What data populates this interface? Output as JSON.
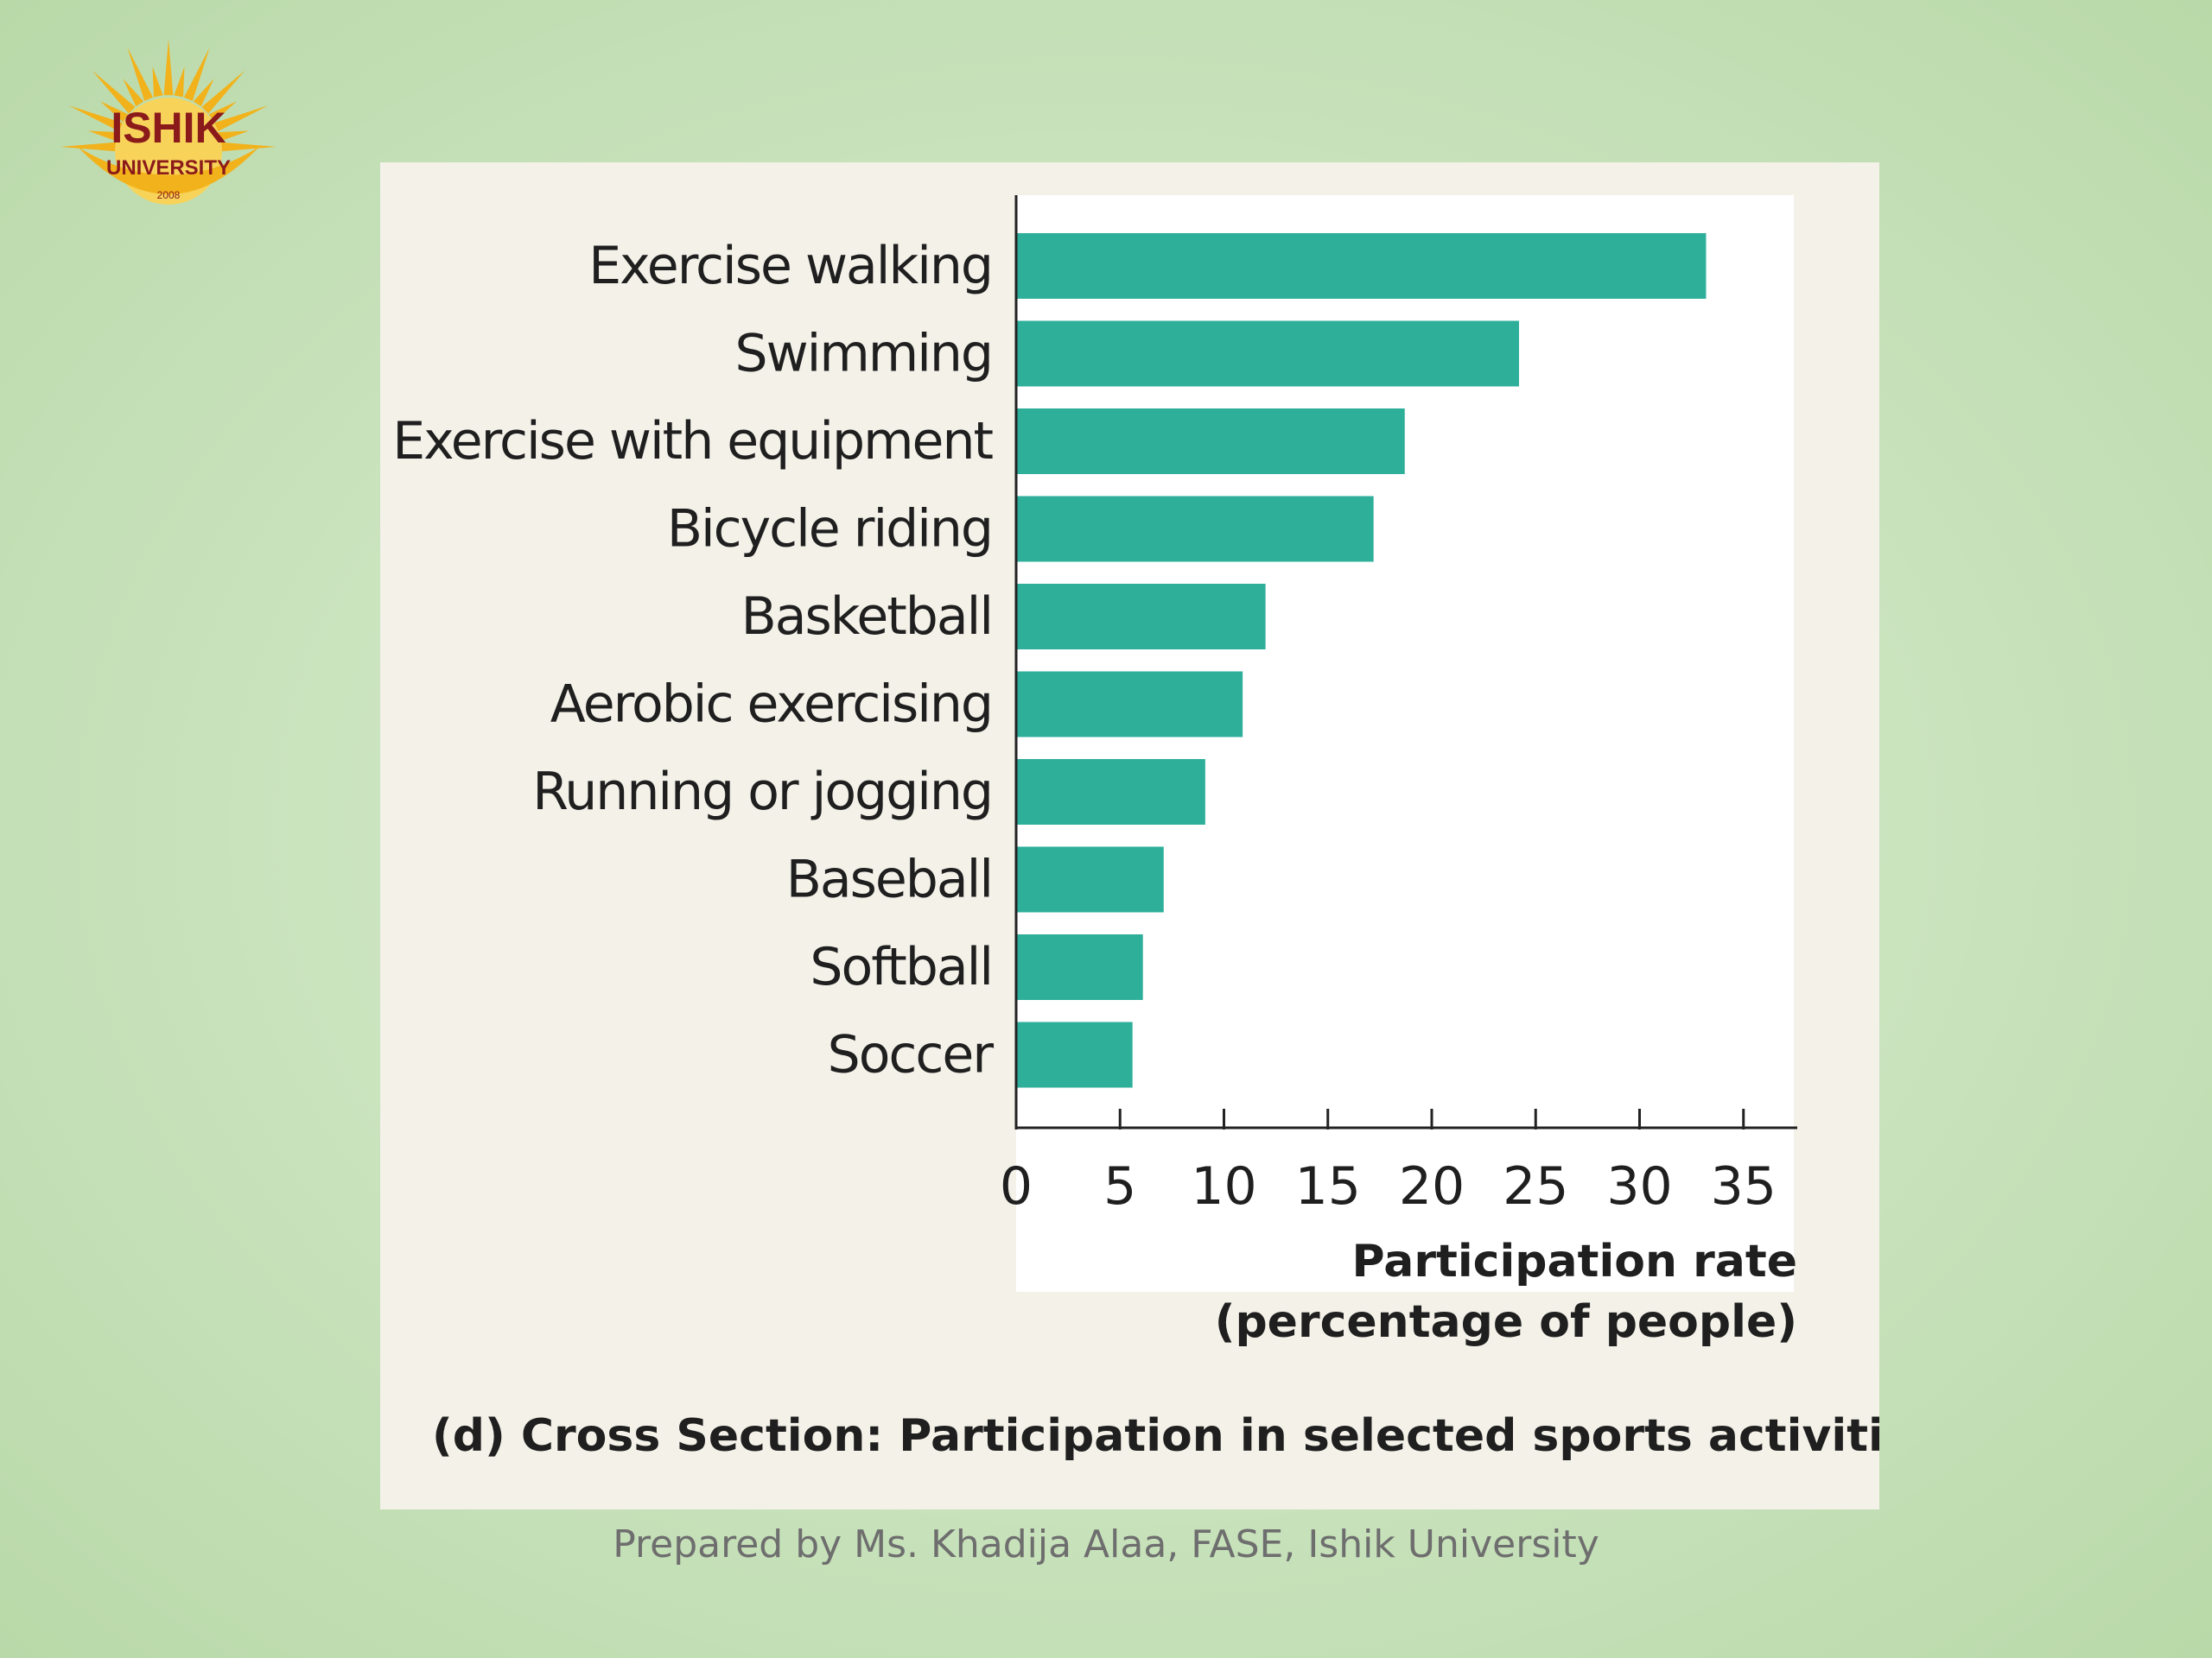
{
  "logo": {
    "line1": "ISHIK",
    "line2": "UNIVERSITY",
    "line3": "2008",
    "color_rays": "#f2b21b",
    "color_text": "#8b1a1a"
  },
  "chart_data": {
    "type": "bar",
    "orientation": "horizontal",
    "categories": [
      "Exercise walking",
      "Swimming",
      "Exercise with equipment",
      "Bicycle riding",
      "Basketball",
      "Aerobic exercising",
      "Running or jogging",
      "Baseball",
      "Softball",
      "Soccer"
    ],
    "values": [
      33.2,
      24.2,
      18.7,
      17.2,
      12.0,
      10.9,
      9.1,
      7.1,
      6.1,
      5.6
    ],
    "xlim": [
      0,
      37
    ],
    "xticks": [
      0,
      5,
      10,
      15,
      20,
      25,
      30,
      35
    ],
    "xlabel_line1": "Participation rate",
    "xlabel_line2": "(percentage of people)",
    "caption": "(d) Cross Section: Participation in selected sports activities",
    "grid": false,
    "bar_color": "#2daf9a",
    "plot_bg": "#ffffff"
  },
  "footer": {
    "text": "Prepared by Ms. Khadija Alaa, FASE, Ishik University"
  }
}
